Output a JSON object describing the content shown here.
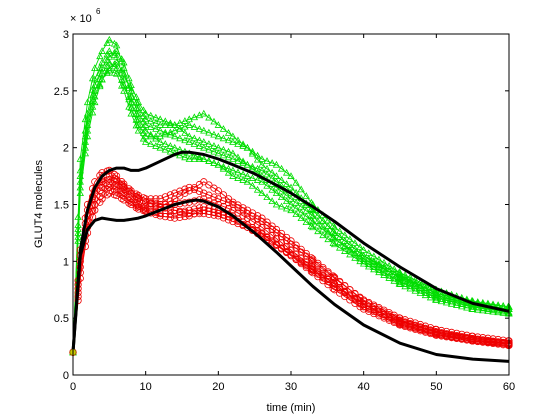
{
  "chart_data": {
    "type": "line",
    "xlabel": "time (min)",
    "ylabel": "GLUT4 molecules",
    "y_multiplier": "× 10",
    "y_multiplier_exponent": "6",
    "xlim": [
      0,
      60
    ],
    "ylim": [
      0,
      3
    ],
    "x_ticks": [
      "0",
      "10",
      "20",
      "30",
      "40",
      "50",
      "60"
    ],
    "y_ticks": [
      "0",
      "0.5",
      "1",
      "1.5",
      "2",
      "2.5",
      "3"
    ],
    "grid": false,
    "colors": {
      "green": "#00dd00",
      "red": "#ee0000",
      "black": "#000000",
      "start_marker": "#aaaa00"
    },
    "green_runs": [
      {
        "x": [
          0,
          1,
          2,
          3,
          4,
          5,
          6,
          7,
          8,
          9,
          10,
          12,
          14,
          16,
          18,
          20,
          22,
          24,
          26,
          28,
          30,
          33,
          36,
          40,
          45,
          50,
          55,
          60
        ],
        "y": [
          0.2,
          1.8,
          2.3,
          2.6,
          2.75,
          2.85,
          2.8,
          2.6,
          2.35,
          2.2,
          2.1,
          2.1,
          2.15,
          2.2,
          2.15,
          2.1,
          2.05,
          2.0,
          1.9,
          1.85,
          1.75,
          1.5,
          1.3,
          1.1,
          0.9,
          0.75,
          0.65,
          0.6
        ]
      },
      {
        "x": [
          0,
          1,
          2,
          3,
          4,
          5,
          6,
          7,
          8,
          9,
          10,
          12,
          14,
          16,
          18,
          20,
          22,
          24,
          26,
          28,
          30,
          33,
          36,
          40,
          45,
          50,
          55,
          60
        ],
        "y": [
          0.2,
          1.9,
          2.4,
          2.7,
          2.85,
          2.95,
          2.9,
          2.7,
          2.45,
          2.3,
          2.2,
          2.15,
          2.1,
          2.05,
          2.0,
          1.95,
          1.9,
          1.85,
          1.8,
          1.7,
          1.6,
          1.45,
          1.25,
          1.05,
          0.85,
          0.7,
          0.62,
          0.58
        ]
      },
      {
        "x": [
          0,
          1,
          2,
          3,
          4,
          5,
          6,
          7,
          8,
          9,
          10,
          12,
          14,
          16,
          18,
          20,
          22,
          24,
          26,
          28,
          30,
          33,
          36,
          40,
          45,
          50,
          55,
          60
        ],
        "y": [
          0.2,
          1.7,
          2.2,
          2.5,
          2.65,
          2.75,
          2.7,
          2.55,
          2.4,
          2.25,
          2.15,
          2.05,
          2.0,
          1.95,
          1.9,
          1.85,
          1.8,
          1.75,
          1.7,
          1.6,
          1.5,
          1.35,
          1.2,
          1.0,
          0.82,
          0.68,
          0.6,
          0.55
        ]
      },
      {
        "x": [
          0,
          1,
          2,
          3,
          4,
          5,
          6,
          7,
          8,
          9,
          10,
          12,
          14,
          16,
          18,
          20,
          22,
          24,
          26,
          28,
          30,
          33,
          36,
          40,
          45,
          50,
          55,
          60
        ],
        "y": [
          0.2,
          1.6,
          2.1,
          2.4,
          2.6,
          2.7,
          2.75,
          2.65,
          2.5,
          2.35,
          2.25,
          2.2,
          2.2,
          2.25,
          2.3,
          2.2,
          2.1,
          2.0,
          1.85,
          1.75,
          1.65,
          1.45,
          1.25,
          1.05,
          0.88,
          0.72,
          0.63,
          0.58
        ]
      },
      {
        "x": [
          0,
          1,
          2,
          3,
          4,
          5,
          6,
          7,
          8,
          9,
          10,
          12,
          14,
          16,
          18,
          20,
          22,
          24,
          26,
          28,
          30,
          33,
          36,
          40,
          45,
          50,
          55,
          60
        ],
        "y": [
          0.2,
          1.75,
          2.25,
          2.55,
          2.7,
          2.8,
          2.85,
          2.75,
          2.55,
          2.4,
          2.3,
          2.25,
          2.2,
          2.1,
          2.05,
          2.0,
          1.95,
          1.85,
          1.75,
          1.65,
          1.55,
          1.4,
          1.2,
          1.02,
          0.86,
          0.72,
          0.64,
          0.6
        ]
      },
      {
        "x": [
          0,
          1,
          2,
          3,
          4,
          5,
          6,
          7,
          8,
          9,
          10,
          12,
          14,
          16,
          18,
          20,
          22,
          24,
          26,
          28,
          30,
          33,
          36,
          40,
          45,
          50,
          55,
          60
        ],
        "y": [
          0.2,
          1.65,
          2.15,
          2.45,
          2.6,
          2.68,
          2.65,
          2.5,
          2.3,
          2.15,
          2.05,
          2.0,
          1.95,
          1.9,
          1.9,
          1.85,
          1.75,
          1.7,
          1.6,
          1.5,
          1.45,
          1.3,
          1.15,
          0.98,
          0.8,
          0.66,
          0.58,
          0.54
        ]
      }
    ],
    "red_runs": [
      {
        "x": [
          0,
          1,
          2,
          3,
          4,
          5,
          6,
          7,
          8,
          9,
          10,
          12,
          14,
          16,
          18,
          20,
          22,
          24,
          26,
          28,
          30,
          33,
          36,
          40,
          45,
          50,
          55,
          60
        ],
        "y": [
          0.2,
          1.0,
          1.4,
          1.6,
          1.7,
          1.72,
          1.7,
          1.65,
          1.6,
          1.55,
          1.52,
          1.5,
          1.5,
          1.52,
          1.55,
          1.5,
          1.45,
          1.38,
          1.3,
          1.2,
          1.1,
          0.95,
          0.8,
          0.6,
          0.45,
          0.36,
          0.31,
          0.28
        ]
      },
      {
        "x": [
          0,
          1,
          2,
          3,
          4,
          5,
          6,
          7,
          8,
          9,
          10,
          12,
          14,
          16,
          18,
          20,
          22,
          24,
          26,
          28,
          30,
          33,
          36,
          40,
          45,
          50,
          55,
          60
        ],
        "y": [
          0.2,
          1.1,
          1.5,
          1.7,
          1.78,
          1.8,
          1.75,
          1.68,
          1.62,
          1.58,
          1.55,
          1.55,
          1.6,
          1.65,
          1.6,
          1.55,
          1.5,
          1.42,
          1.35,
          1.25,
          1.15,
          1.0,
          0.85,
          0.66,
          0.5,
          0.4,
          0.34,
          0.3
        ]
      },
      {
        "x": [
          0,
          1,
          2,
          3,
          4,
          5,
          6,
          7,
          8,
          9,
          10,
          12,
          14,
          16,
          18,
          20,
          22,
          24,
          26,
          28,
          30,
          33,
          36,
          40,
          45,
          50,
          55,
          60
        ],
        "y": [
          0.2,
          0.9,
          1.3,
          1.5,
          1.6,
          1.65,
          1.62,
          1.58,
          1.52,
          1.48,
          1.45,
          1.42,
          1.42,
          1.45,
          1.48,
          1.45,
          1.4,
          1.32,
          1.25,
          1.15,
          1.05,
          0.9,
          0.75,
          0.58,
          0.44,
          0.35,
          0.3,
          0.27
        ]
      },
      {
        "x": [
          0,
          1,
          2,
          3,
          4,
          5,
          6,
          7,
          8,
          9,
          10,
          12,
          14,
          16,
          18,
          20,
          22,
          24,
          26,
          28,
          30,
          33,
          36,
          40,
          45,
          50,
          55,
          60
        ],
        "y": [
          0.2,
          0.95,
          1.35,
          1.55,
          1.65,
          1.68,
          1.66,
          1.6,
          1.55,
          1.5,
          1.48,
          1.48,
          1.55,
          1.62,
          1.7,
          1.62,
          1.52,
          1.45,
          1.38,
          1.28,
          1.18,
          1.02,
          0.86,
          0.65,
          0.48,
          0.38,
          0.32,
          0.28
        ]
      },
      {
        "x": [
          0,
          1,
          2,
          3,
          4,
          5,
          6,
          7,
          8,
          9,
          10,
          12,
          14,
          16,
          18,
          20,
          22,
          24,
          26,
          28,
          30,
          33,
          36,
          40,
          45,
          50,
          55,
          60
        ],
        "y": [
          0.2,
          1.05,
          1.45,
          1.62,
          1.72,
          1.75,
          1.72,
          1.66,
          1.6,
          1.56,
          1.52,
          1.48,
          1.45,
          1.42,
          1.42,
          1.4,
          1.35,
          1.3,
          1.22,
          1.14,
          1.05,
          0.92,
          0.78,
          0.62,
          0.47,
          0.37,
          0.31,
          0.27
        ]
      },
      {
        "x": [
          0,
          1,
          2,
          3,
          4,
          5,
          6,
          7,
          8,
          9,
          10,
          12,
          14,
          16,
          18,
          20,
          22,
          24,
          26,
          28,
          30,
          33,
          36,
          40,
          45,
          50,
          55,
          60
        ],
        "y": [
          0.2,
          0.85,
          1.25,
          1.45,
          1.55,
          1.6,
          1.58,
          1.54,
          1.5,
          1.46,
          1.44,
          1.4,
          1.38,
          1.4,
          1.45,
          1.42,
          1.38,
          1.3,
          1.24,
          1.15,
          1.06,
          0.93,
          0.8,
          0.62,
          0.46,
          0.36,
          0.3,
          0.26
        ]
      }
    ],
    "black_curves": [
      {
        "x": [
          0,
          1,
          2,
          3,
          4,
          5,
          6,
          7,
          8,
          9,
          10,
          12,
          14,
          15,
          16,
          18,
          20,
          22,
          25,
          28,
          30,
          33,
          36,
          40,
          45,
          50,
          55,
          60
        ],
        "y": [
          0.2,
          1.1,
          1.45,
          1.65,
          1.75,
          1.8,
          1.82,
          1.82,
          1.8,
          1.8,
          1.82,
          1.88,
          1.94,
          1.96,
          1.96,
          1.94,
          1.9,
          1.85,
          1.77,
          1.67,
          1.6,
          1.48,
          1.35,
          1.16,
          0.95,
          0.76,
          0.63,
          0.56
        ]
      },
      {
        "x": [
          0,
          1,
          2,
          3,
          4,
          5,
          6,
          7,
          8,
          9,
          10,
          12,
          14,
          16,
          17,
          18,
          20,
          22,
          25,
          28,
          30,
          33,
          36,
          40,
          45,
          50,
          55,
          60
        ],
        "y": [
          0.2,
          1.05,
          1.28,
          1.36,
          1.38,
          1.37,
          1.36,
          1.36,
          1.37,
          1.38,
          1.4,
          1.45,
          1.5,
          1.53,
          1.54,
          1.53,
          1.48,
          1.4,
          1.25,
          1.08,
          0.96,
          0.78,
          0.62,
          0.44,
          0.28,
          0.18,
          0.14,
          0.12
        ]
      }
    ]
  }
}
